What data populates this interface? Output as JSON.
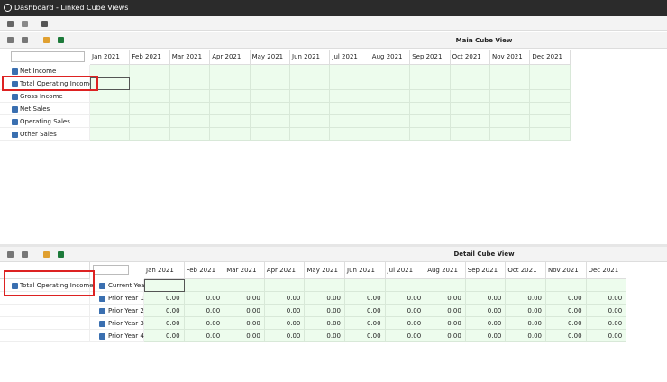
{
  "window": {
    "title": "Dashboard - Linked Cube Views"
  },
  "main_view": {
    "title": "Main Cube View",
    "columns": [
      "Jan 2021",
      "Feb 2021",
      "Mar 2021",
      "Apr 2021",
      "May 2021",
      "Jun 2021",
      "Jul 2021",
      "Aug 2021",
      "Sep 2021",
      "Oct 2021",
      "Nov 2021",
      "Dec 2021"
    ],
    "rows": [
      "Net Income",
      "Total Operating Income",
      "Gross Income",
      "Net Sales",
      "Operating Sales",
      "Other Sales"
    ]
  },
  "detail_view": {
    "title": "Detail Cube View",
    "columns": [
      "Jan 2021",
      "Feb 2021",
      "Mar 2021",
      "Apr 2021",
      "May 2021",
      "Jun 2021",
      "Jul 2021",
      "Aug 2021",
      "Sep 2021",
      "Oct 2021",
      "Nov 2021",
      "Dec 2021"
    ],
    "row_header": "Total Operating Income",
    "rows": [
      {
        "label": "Current Year"
      },
      {
        "label": "Prior Year 1",
        "values": [
          "0.00",
          "0.00",
          "0.00",
          "0.00",
          "0.00",
          "0.00",
          "0.00",
          "0.00",
          "0.00",
          "0.00",
          "0.00",
          "0.00"
        ]
      },
      {
        "label": "Prior Year 2",
        "values": [
          "0.00",
          "0.00",
          "0.00",
          "0.00",
          "0.00",
          "0.00",
          "0.00",
          "0.00",
          "0.00",
          "0.00",
          "0.00",
          "0.00"
        ]
      },
      {
        "label": "Prior Year 3",
        "values": [
          "0.00",
          "0.00",
          "0.00",
          "0.00",
          "0.00",
          "0.00",
          "0.00",
          "0.00",
          "0.00",
          "0.00",
          "0.00",
          "0.00"
        ]
      },
      {
        "label": "Prior Year 4",
        "values": [
          "0.00",
          "0.00",
          "0.00",
          "0.00",
          "0.00",
          "0.00",
          "0.00",
          "0.00",
          "0.00",
          "0.00",
          "0.00",
          "0.00"
        ]
      }
    ]
  }
}
